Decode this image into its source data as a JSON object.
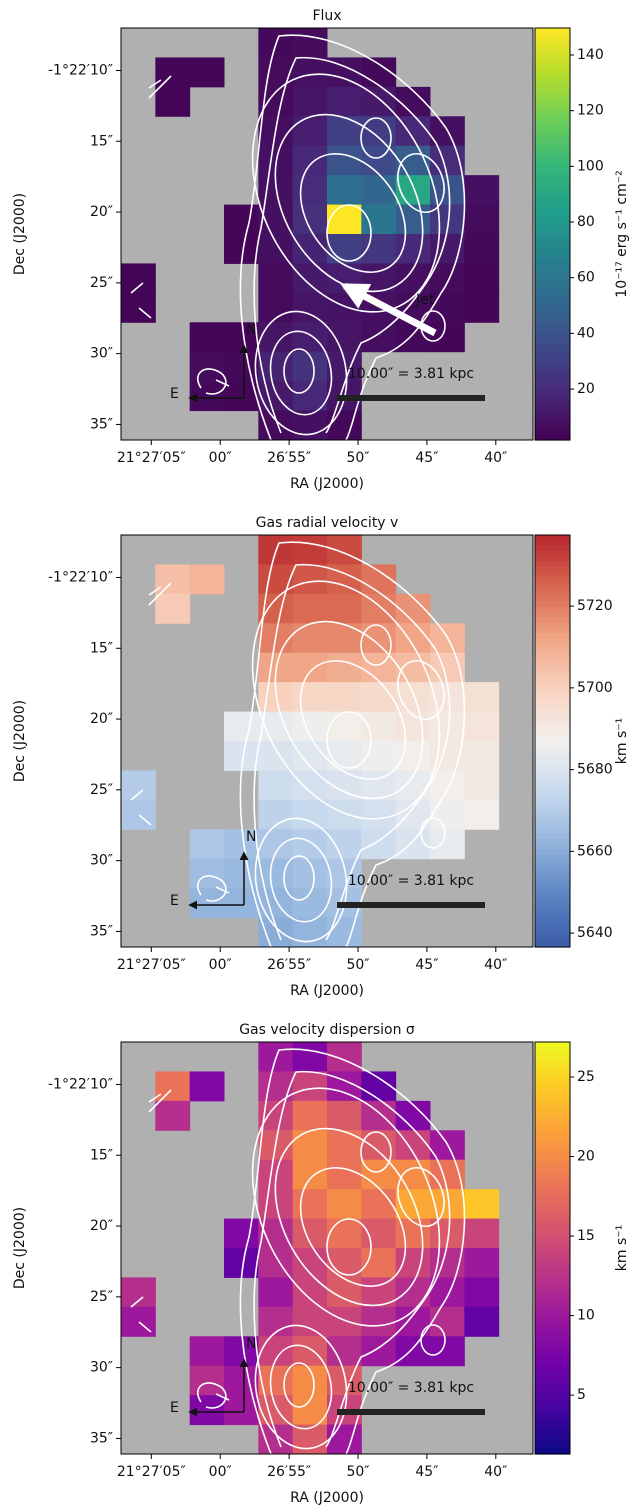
{
  "chart_data": [
    {
      "type": "heatmap",
      "title": "Flux",
      "x_label": "RA (J2000)",
      "y_label": "Dec (J2000)",
      "colorbar_label": "10⁻¹⁷ erg s⁻¹ cm⁻²",
      "colormap": "viridis",
      "clim": [
        1.7,
        149.7
      ],
      "colorbar_ticks": [
        20,
        40,
        60,
        80,
        100,
        120,
        140
      ],
      "xlim": [
        7.2,
        -22.7
      ],
      "xticks": [
        {
          "value": 5,
          "label": "21°27′05″"
        },
        {
          "value": 0,
          "label": "00″"
        },
        {
          "value": -5,
          "label": "26′55″"
        },
        {
          "value": -10,
          "label": "50″"
        },
        {
          "value": -15,
          "label": "45″"
        },
        {
          "value": -20,
          "label": "40″"
        }
      ],
      "ylim": [
        36.1,
        7.0
      ],
      "yticks": [
        {
          "value": 10,
          "label": "-1°22′10″"
        },
        {
          "value": 15,
          "label": "15″"
        },
        {
          "value": 20,
          "label": "20″"
        },
        {
          "value": 25,
          "label": "25″"
        },
        {
          "value": 30,
          "label": "30″"
        },
        {
          "value": 35,
          "label": "35″"
        }
      ],
      "north": "N",
      "east": "E",
      "scale_label": "10.00″ = 3.81 kpc",
      "jet_label": "Jet",
      "values": [
        [
          null,
          null,
          null,
          null,
          5,
          6,
          null,
          null,
          null,
          null,
          null,
          null
        ],
        [
          null,
          4,
          4,
          null,
          6,
          8,
          8,
          5,
          null,
          null,
          null,
          null
        ],
        [
          null,
          3,
          null,
          null,
          6,
          10,
          14,
          12,
          6,
          null,
          null,
          null
        ],
        [
          null,
          null,
          null,
          null,
          7,
          14,
          30,
          28,
          18,
          8,
          null,
          null
        ],
        [
          null,
          null,
          null,
          null,
          8,
          18,
          40,
          35,
          45,
          20,
          null,
          null
        ],
        [
          null,
          null,
          null,
          null,
          8,
          20,
          55,
          50,
          90,
          40,
          8,
          null
        ],
        [
          null,
          null,
          null,
          4,
          8,
          22,
          150,
          60,
          45,
          25,
          6,
          null
        ],
        [
          null,
          null,
          null,
          4,
          8,
          16,
          30,
          25,
          18,
          12,
          5,
          null
        ],
        [
          3,
          null,
          null,
          null,
          6,
          12,
          14,
          10,
          8,
          6,
          4,
          null
        ],
        [
          3,
          null,
          null,
          null,
          6,
          10,
          9,
          8,
          6,
          5,
          4,
          null
        ],
        [
          null,
          null,
          4,
          4,
          10,
          14,
          10,
          7,
          5,
          4,
          null,
          null
        ],
        [
          null,
          null,
          6,
          5,
          16,
          24,
          12,
          null,
          null,
          null,
          null,
          null
        ],
        [
          null,
          null,
          5,
          4,
          12,
          18,
          10,
          null,
          null,
          null,
          null,
          null
        ],
        [
          null,
          null,
          null,
          null,
          6,
          8,
          5,
          null,
          null,
          null,
          null,
          null
        ]
      ]
    },
    {
      "type": "heatmap",
      "title": "Gas radial velocity v",
      "x_label": "RA (J2000)",
      "y_label": "Dec (J2000)",
      "colorbar_label": "km s⁻¹",
      "colormap": "RdBu_r",
      "clim": [
        5636.6,
        5737.4
      ],
      "colorbar_ticks": [
        5640,
        5660,
        5680,
        5700,
        5720
      ],
      "xlim": [
        7.2,
        -22.7
      ],
      "xticks": [
        {
          "value": 5,
          "label": "21°27′05″"
        },
        {
          "value": 0,
          "label": "00″"
        },
        {
          "value": -5,
          "label": "26′55″"
        },
        {
          "value": -10,
          "label": "50″"
        },
        {
          "value": -15,
          "label": "45″"
        },
        {
          "value": -20,
          "label": "40″"
        }
      ],
      "ylim": [
        36.1,
        7.0
      ],
      "yticks": [
        {
          "value": 10,
          "label": "-1°22′10″"
        },
        {
          "value": 15,
          "label": "15″"
        },
        {
          "value": 20,
          "label": "20″"
        },
        {
          "value": 25,
          "label": "25″"
        },
        {
          "value": 30,
          "label": "30″"
        },
        {
          "value": 35,
          "label": "35″"
        }
      ],
      "north": "N",
      "east": "E",
      "scale_label": "10.00″ = 3.81 kpc",
      "values": [
        [
          null,
          null,
          null,
          null,
          5734,
          5733,
          5730,
          null,
          null,
          null,
          null,
          null
        ],
        [
          null,
          5705,
          5708,
          null,
          5730,
          5728,
          5726,
          5722,
          null,
          null,
          null,
          null
        ],
        [
          null,
          5702,
          null,
          null,
          5726,
          5724,
          5724,
          5720,
          5716,
          null,
          null,
          null
        ],
        [
          null,
          null,
          null,
          null,
          5720,
          5718,
          5718,
          5716,
          5712,
          5708,
          null,
          null
        ],
        [
          null,
          null,
          null,
          null,
          5712,
          5712,
          5710,
          5708,
          5706,
          5702,
          null,
          null
        ],
        [
          null,
          null,
          null,
          null,
          5700,
          5698,
          5698,
          5696,
          5694,
          5692,
          5694,
          null
        ],
        [
          null,
          null,
          null,
          5684,
          5684,
          5686,
          5688,
          5690,
          5692,
          5690,
          5692,
          null
        ],
        [
          null,
          null,
          null,
          5680,
          5680,
          5682,
          5684,
          5686,
          5688,
          5690,
          5690,
          null
        ],
        [
          5670,
          null,
          null,
          null,
          5676,
          5678,
          5680,
          5682,
          5684,
          5688,
          5690,
          null
        ],
        [
          5668,
          null,
          null,
          null,
          5672,
          5674,
          5676,
          5678,
          5682,
          5686,
          5688,
          null
        ],
        [
          null,
          null,
          5668,
          5666,
          5668,
          5670,
          5672,
          5676,
          5680,
          5684,
          null,
          null
        ],
        [
          null,
          null,
          5665,
          5664,
          5664,
          5666,
          5668,
          null,
          null,
          null,
          null,
          null
        ],
        [
          null,
          null,
          5662,
          5662,
          5662,
          5664,
          5666,
          null,
          null,
          null,
          null,
          null
        ],
        [
          null,
          null,
          null,
          null,
          5660,
          5662,
          5664,
          null,
          null,
          null,
          null,
          null
        ]
      ]
    },
    {
      "type": "heatmap",
      "title": "Gas velocity dispersion σ",
      "x_label": "RA (J2000)",
      "y_label": "Dec (J2000)",
      "colorbar_label": "km s⁻¹",
      "colormap": "plasma",
      "clim": [
        1.3,
        27.2
      ],
      "colorbar_ticks": [
        5,
        10,
        15,
        20,
        25
      ],
      "xlim": [
        7.2,
        -22.7
      ],
      "xticks": [
        {
          "value": 5,
          "label": "21°27′05″"
        },
        {
          "value": 0,
          "label": "00″"
        },
        {
          "value": -5,
          "label": "26′55″"
        },
        {
          "value": -10,
          "label": "50″"
        },
        {
          "value": -15,
          "label": "45″"
        },
        {
          "value": -20,
          "label": "40″"
        }
      ],
      "ylim": [
        36.1,
        7.0
      ],
      "yticks": [
        {
          "value": 10,
          "label": "-1°22′10″"
        },
        {
          "value": 15,
          "label": "15″"
        },
        {
          "value": 20,
          "label": "20″"
        },
        {
          "value": 25,
          "label": "25″"
        },
        {
          "value": 30,
          "label": "30″"
        },
        {
          "value": 35,
          "label": "35″"
        }
      ],
      "north": "N",
      "east": "E",
      "scale_label": "10.00″ = 3.81 kpc",
      "values": [
        [
          null,
          null,
          null,
          null,
          10,
          8,
          12,
          null,
          null,
          null,
          null,
          null
        ],
        [
          null,
          18,
          8,
          null,
          12,
          14,
          10,
          6,
          null,
          null,
          null,
          null
        ],
        [
          null,
          12,
          null,
          null,
          14,
          18,
          16,
          12,
          8,
          null,
          null,
          null
        ],
        [
          null,
          null,
          null,
          null,
          16,
          20,
          18,
          16,
          14,
          10,
          null,
          null
        ],
        [
          null,
          null,
          null,
          null,
          14,
          20,
          18,
          20,
          20,
          18,
          null,
          null
        ],
        [
          null,
          null,
          null,
          null,
          14,
          18,
          20,
          18,
          22,
          22,
          24,
          null
        ],
        [
          null,
          null,
          null,
          8,
          12,
          16,
          18,
          16,
          18,
          16,
          14,
          null
        ],
        [
          null,
          null,
          null,
          6,
          12,
          14,
          16,
          18,
          14,
          12,
          10,
          null
        ],
        [
          12,
          null,
          null,
          null,
          10,
          14,
          16,
          14,
          12,
          10,
          8,
          null
        ],
        [
          10,
          null,
          null,
          null,
          12,
          14,
          14,
          12,
          10,
          12,
          6,
          null
        ],
        [
          null,
          null,
          10,
          8,
          14,
          16,
          12,
          10,
          8,
          8,
          null,
          null
        ],
        [
          null,
          null,
          12,
          10,
          18,
          20,
          16,
          null,
          null,
          null,
          null,
          null
        ],
        [
          null,
          null,
          8,
          10,
          16,
          20,
          14,
          null,
          null,
          null,
          null,
          null
        ],
        [
          null,
          null,
          null,
          null,
          12,
          16,
          10,
          null,
          null,
          null,
          null,
          null
        ]
      ]
    }
  ]
}
